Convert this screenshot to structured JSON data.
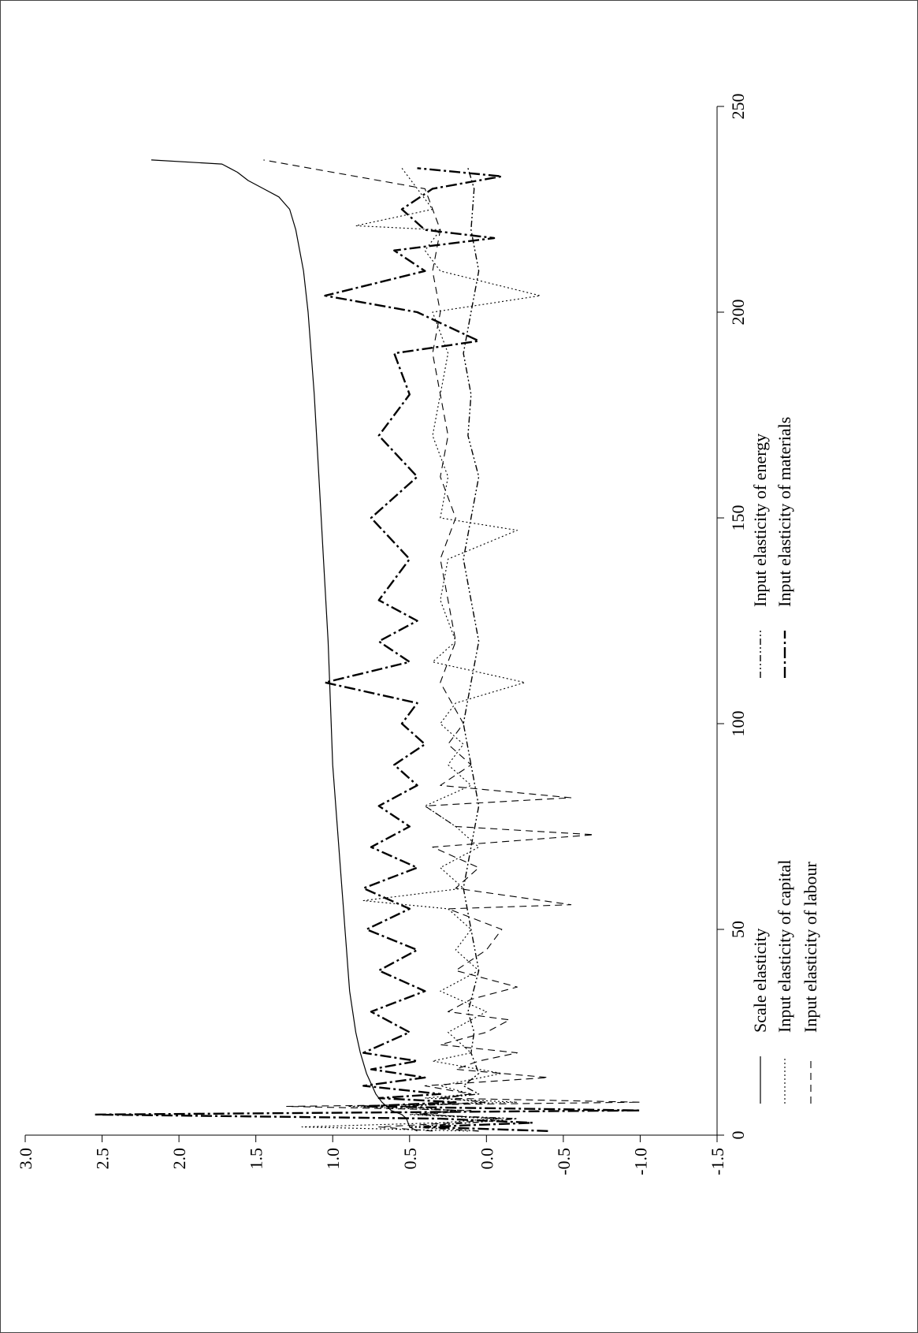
{
  "chart_data": {
    "type": "line",
    "title": "",
    "xlabel": "",
    "ylabel": "",
    "xlim": [
      0,
      250
    ],
    "ylim": [
      -1.5,
      3.0
    ],
    "x_ticks": [
      0,
      50,
      100,
      150,
      200,
      250
    ],
    "y_ticks": [
      -1.5,
      -1.0,
      -0.5,
      0.0,
      0.5,
      1.0,
      1.5,
      2.0,
      2.5,
      3.0
    ],
    "y_tick_labels": [
      "-1.5",
      "-1.0",
      "-0.5",
      "0.0",
      "0.5",
      "1.0",
      "1.5",
      "2.0",
      "2.5",
      "3.0"
    ],
    "x_tick_labels": [
      "0",
      "50",
      "100",
      "150",
      "200",
      "250"
    ],
    "orientation": "rotated 90° counter-clockwise",
    "grid": false,
    "legend_position": "bottom",
    "series": [
      {
        "name": "Scale elasticity",
        "style": "solid",
        "x": [
          1,
          2,
          4,
          5,
          6,
          8,
          10,
          15,
          20,
          25,
          30,
          35,
          40,
          45,
          50,
          55,
          60,
          70,
          80,
          90,
          100,
          120,
          140,
          160,
          180,
          200,
          210,
          220,
          225,
          228,
          230,
          232,
          234,
          235,
          236,
          237
        ],
        "values": [
          0.45,
          0.5,
          0.52,
          0.55,
          0.62,
          0.68,
          0.72,
          0.78,
          0.82,
          0.85,
          0.87,
          0.89,
          0.9,
          0.91,
          0.92,
          0.93,
          0.94,
          0.96,
          0.98,
          1.0,
          1.01,
          1.03,
          1.06,
          1.09,
          1.12,
          1.16,
          1.19,
          1.24,
          1.28,
          1.35,
          1.45,
          1.55,
          1.62,
          1.67,
          1.72,
          2.18
        ]
      },
      {
        "name": "Input elasticity of capital",
        "style": "dotted",
        "x": [
          1,
          2,
          3,
          4,
          5,
          6,
          7,
          8,
          9,
          10,
          12,
          15,
          18,
          20,
          25,
          30,
          35,
          40,
          45,
          50,
          55,
          57,
          60,
          65,
          70,
          75,
          80,
          85,
          90,
          95,
          100,
          105,
          110,
          115,
          120,
          130,
          140,
          147,
          150,
          160,
          170,
          180,
          190,
          200,
          204,
          210,
          215,
          220,
          221,
          225,
          230,
          235
        ],
        "values": [
          0.12,
          1.2,
          0.3,
          -0.05,
          0.5,
          0.2,
          0.9,
          -0.2,
          0.4,
          0.1,
          0.3,
          -0.1,
          0.35,
          0.1,
          0.25,
          0.0,
          0.3,
          0.05,
          0.2,
          0.1,
          0.25,
          0.8,
          0.15,
          0.3,
          0.05,
          0.2,
          0.4,
          0.1,
          0.25,
          0.15,
          0.3,
          0.2,
          -0.25,
          0.35,
          0.2,
          0.3,
          0.25,
          -0.2,
          0.3,
          0.25,
          0.35,
          0.3,
          0.25,
          0.35,
          -0.35,
          0.3,
          0.4,
          0.3,
          0.85,
          0.35,
          0.45,
          0.55
        ]
      },
      {
        "name": "Input elasticity of labour",
        "style": "dashed",
        "x": [
          1,
          2,
          3,
          4,
          5,
          6,
          7,
          8,
          9,
          10,
          12,
          14,
          16,
          18,
          20,
          22,
          25,
          28,
          30,
          33,
          36,
          40,
          45,
          50,
          55,
          56,
          60,
          65,
          70,
          73,
          75,
          80,
          82,
          85,
          90,
          95,
          100,
          110,
          120,
          130,
          140,
          150,
          160,
          170,
          180,
          190,
          200,
          210,
          220,
          230,
          237
        ],
        "values": [
          0.35,
          0.7,
          0.2,
          -0.1,
          0.4,
          0.1,
          1.3,
          -1.0,
          0.3,
          0.1,
          0.4,
          -0.4,
          0.2,
          0.05,
          -0.2,
          0.3,
          0.0,
          -0.15,
          0.25,
          0.1,
          -0.2,
          0.2,
          0.0,
          -0.1,
          0.25,
          -0.55,
          0.2,
          0.05,
          0.35,
          -0.7,
          0.2,
          0.4,
          -0.55,
          0.3,
          0.1,
          0.25,
          0.15,
          0.3,
          0.2,
          0.25,
          0.3,
          0.2,
          0.3,
          0.25,
          0.3,
          0.35,
          0.3,
          0.35,
          0.3,
          0.4,
          1.45
        ]
      },
      {
        "name": "Input elasticity of energy",
        "style": "dash-dot-dot",
        "x": [
          1,
          2,
          3,
          4,
          5,
          6,
          7,
          8,
          9,
          10,
          12,
          15,
          20,
          25,
          30,
          40,
          50,
          60,
          70,
          80,
          90,
          100,
          110,
          120,
          130,
          140,
          150,
          160,
          170,
          180,
          190,
          200,
          210,
          220,
          230,
          235
        ],
        "values": [
          0.05,
          0.5,
          0.1,
          -0.2,
          0.45,
          0.2,
          0.55,
          0.0,
          0.3,
          0.05,
          0.15,
          0.05,
          0.1,
          0.08,
          0.12,
          0.05,
          0.1,
          0.15,
          0.1,
          0.05,
          0.1,
          0.15,
          0.1,
          0.05,
          0.1,
          0.15,
          0.1,
          0.05,
          0.12,
          0.1,
          0.15,
          0.1,
          0.05,
          0.1,
          0.08,
          0.12
        ]
      },
      {
        "name": "Input elasticity of materials",
        "style": "dash-dot",
        "x": [
          1,
          2,
          3,
          4,
          5,
          6,
          7,
          8,
          9,
          10,
          12,
          14,
          16,
          18,
          20,
          25,
          30,
          35,
          40,
          45,
          50,
          55,
          60,
          65,
          70,
          75,
          80,
          85,
          90,
          95,
          100,
          105,
          110,
          115,
          120,
          125,
          130,
          140,
          150,
          160,
          170,
          180,
          190,
          193,
          200,
          204,
          210,
          215,
          218,
          220,
          225,
          230,
          233,
          235
        ],
        "values": [
          -0.4,
          0.4,
          -0.3,
          0.3,
          2.55,
          -1.0,
          0.8,
          0.2,
          0.7,
          0.3,
          0.8,
          0.4,
          0.75,
          0.45,
          0.8,
          0.5,
          0.75,
          0.4,
          0.7,
          0.45,
          0.78,
          0.5,
          0.8,
          0.45,
          0.75,
          0.5,
          0.7,
          0.45,
          0.6,
          0.4,
          0.55,
          0.45,
          1.05,
          0.5,
          0.7,
          0.45,
          0.7,
          0.5,
          0.75,
          0.45,
          0.7,
          0.5,
          0.6,
          0.05,
          0.45,
          1.05,
          0.4,
          0.6,
          -0.05,
          0.4,
          0.55,
          0.35,
          -0.1,
          0.45
        ]
      }
    ]
  }
}
